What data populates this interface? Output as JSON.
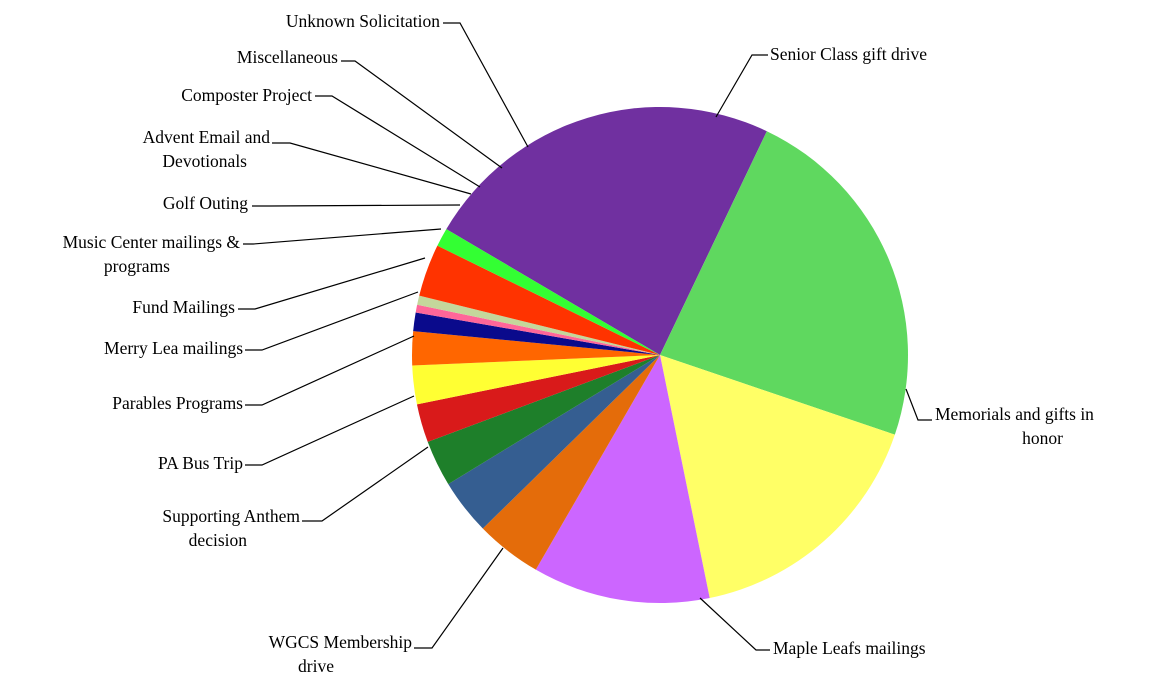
{
  "chart_data": {
    "type": "pie",
    "title": "",
    "slices": [
      {
        "label": "Senior Class gift drive",
        "value": 23.5,
        "color": "#7030A0"
      },
      {
        "label": "Memorials and gifts in honor",
        "value": 23.0,
        "color": "#5FD85F"
      },
      {
        "label": "Maple Leafs mailings",
        "value": 16.5,
        "color": "#FFFF66"
      },
      {
        "label": "WGCS Membership drive",
        "value": 11.5,
        "color": "#CC66FF"
      },
      {
        "label": "Supporting Anthem decision",
        "value": 4.3,
        "color": "#E46C0A"
      },
      {
        "label": "PA Bus Trip",
        "value": 3.6,
        "color": "#355E91"
      },
      {
        "label": "Parables Programs",
        "value": 3.0,
        "color": "#1E7F2A"
      },
      {
        "label": "Merry Lea mailings",
        "value": 2.5,
        "color": "#D91A1A"
      },
      {
        "label": "Fund Mailings",
        "value": 2.5,
        "color": "#FFFF33"
      },
      {
        "label": "Music Center mailings & programs",
        "value": 2.2,
        "color": "#FF6600"
      },
      {
        "label": "Golf Outing",
        "value": 1.2,
        "color": "#0A0A8C"
      },
      {
        "label": "Advent Email and Devotionals",
        "value": 0.5,
        "color": "#FF6699"
      },
      {
        "label": "Composter Project",
        "value": 0.6,
        "color": "#C4D79B"
      },
      {
        "label": "Miscellaneous",
        "value": 3.4,
        "color": "#FF3300"
      },
      {
        "label": "Unknown Solicitation",
        "value": 1.2,
        "color": "#33FF33"
      }
    ],
    "legend": "none",
    "labels": "outside with leader lines"
  }
}
